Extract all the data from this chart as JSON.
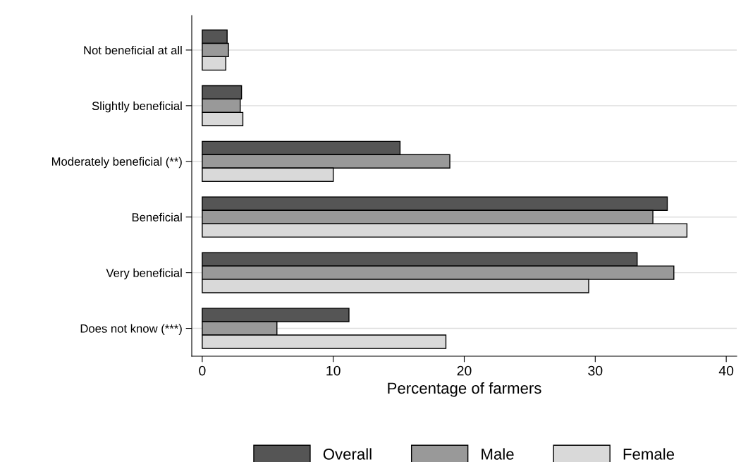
{
  "chart_data": {
    "type": "bar",
    "orientation": "horizontal",
    "xlabel": "Percentage of farmers",
    "categories": [
      "Not beneficial at all",
      "Slightly beneficial",
      "Moderately beneficial (**)",
      "Beneficial",
      "Very beneficial",
      "Does not know (***)"
    ],
    "series": [
      {
        "name": "Overall",
        "color": "#555555",
        "values": [
          1.9,
          3.0,
          15.1,
          35.5,
          33.2,
          11.2
        ]
      },
      {
        "name": "Male",
        "color": "#999999",
        "values": [
          2.0,
          2.9,
          18.9,
          34.4,
          36.0,
          5.7
        ]
      },
      {
        "name": "Female",
        "color": "#d9d9d9",
        "values": [
          1.8,
          3.1,
          10.0,
          37.0,
          29.5,
          18.6
        ]
      }
    ],
    "xlim": [
      -0.8,
      40.8
    ],
    "xticks": [
      0,
      10,
      20,
      30,
      40
    ],
    "grid": "y",
    "legend": "bottom"
  }
}
